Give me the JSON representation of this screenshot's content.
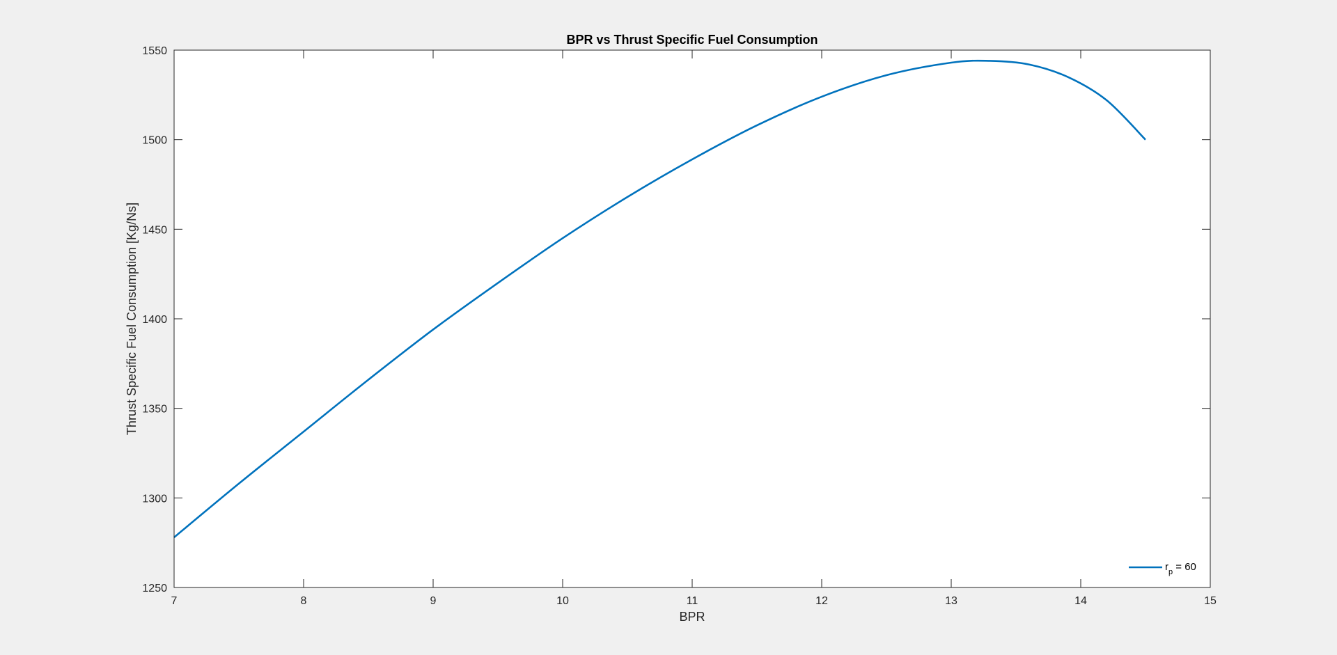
{
  "chart_data": {
    "type": "line",
    "title": "BPR vs Thrust Specific Fuel Consumption",
    "xlabel": "BPR",
    "ylabel": "Thrust Specific Fuel Consumption [Kg/Ns]",
    "xlim": [
      7,
      15
    ],
    "ylim": [
      1250,
      1550
    ],
    "xticks": [
      7,
      8,
      9,
      10,
      11,
      12,
      13,
      14,
      15
    ],
    "yticks": [
      1250,
      1300,
      1350,
      1400,
      1450,
      1500,
      1550
    ],
    "grid": false,
    "legend_position": "bottom-right",
    "series": [
      {
        "name": "r_p = 60",
        "legend_main": "r",
        "legend_sub": "p",
        "legend_rest": " = 60",
        "color": "#0072BD",
        "x": [
          7.0,
          7.5,
          8.0,
          8.5,
          9.0,
          9.5,
          10.0,
          10.5,
          11.0,
          11.5,
          12.0,
          12.5,
          13.0,
          13.3,
          13.6,
          13.9,
          14.2,
          14.5
        ],
        "y": [
          1278,
          1308,
          1337,
          1366,
          1394,
          1420,
          1445,
          1468,
          1489,
          1508,
          1524,
          1536,
          1543,
          1544,
          1542,
          1535,
          1522,
          1500
        ]
      }
    ]
  }
}
